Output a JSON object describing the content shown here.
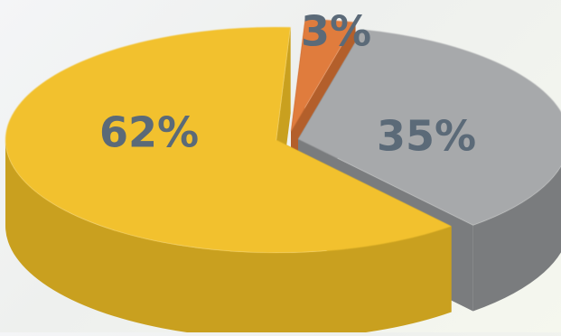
{
  "chart_data": {
    "type": "pie",
    "title": "",
    "style": "3d-exploded",
    "slices": [
      {
        "label": "62%",
        "value": 62,
        "color": "#f2c12e",
        "side_color": "#c9a01f"
      },
      {
        "label": "3%",
        "value": 3,
        "color": "#e07b3c",
        "side_color": "#b35f2b"
      },
      {
        "label": "35%",
        "value": 35,
        "color": "#a7a9ab",
        "side_color": "#7a7c7e"
      }
    ]
  }
}
